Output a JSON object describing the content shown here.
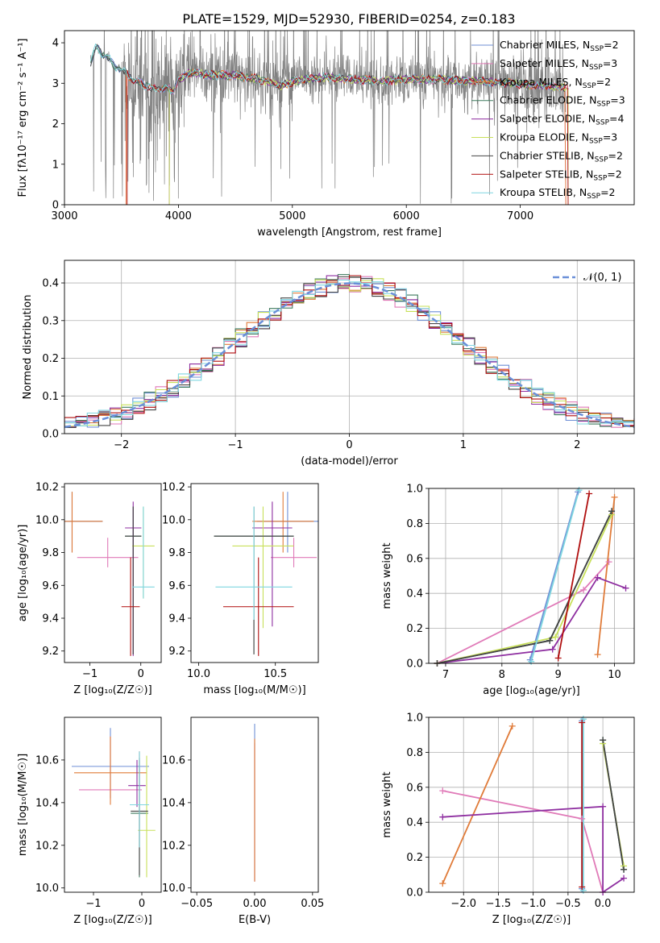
{
  "figure_title": "PLATE=1529, MJD=52930, FIBERID=0254, z=0.183",
  "models": [
    {
      "label": "Chabrier MILES, N",
      "sub": "SSP",
      "suffix": "=2",
      "color": "#6f8fd6"
    },
    {
      "label": "Salpeter MILES, N",
      "sub": "SSP",
      "suffix": "=3",
      "color": "#e07ab8"
    },
    {
      "label": "Kroupa MILES, N",
      "sub": "SSP",
      "suffix": "=2",
      "color": "#e07b39"
    },
    {
      "label": "Chabrier ELODIE, N",
      "sub": "SSP",
      "suffix": "=3",
      "color": "#3f7a5e"
    },
    {
      "label": "Salpeter ELODIE, N",
      "sub": "SSP",
      "suffix": "=4",
      "color": "#8e2ea0"
    },
    {
      "label": "Kroupa ELODIE, N",
      "sub": "SSP",
      "suffix": "=3",
      "color": "#c8e05a"
    },
    {
      "label": "Chabrier STELIB, N",
      "sub": "SSP",
      "suffix": "=2",
      "color": "#444444"
    },
    {
      "label": "Salpeter STELIB, N",
      "sub": "SSP",
      "suffix": "=2",
      "color": "#b00f0f"
    },
    {
      "label": "Kroupa STELIB, N",
      "sub": "SSP",
      "suffix": "=2",
      "color": "#7fd6e0"
    }
  ],
  "chart_data": [
    {
      "id": "spectrum",
      "type": "line",
      "xlabel": "wavelength [Angstrom, rest frame]",
      "ylabel": "Flux [fλ10⁻¹⁷ erg cm⁻² s⁻¹ A⁻¹]",
      "xlim": [
        3000,
        8000
      ],
      "ylim": [
        0,
        4.3
      ],
      "xticks": [
        3000,
        4000,
        5000,
        6000,
        7000
      ],
      "yticks": [
        0,
        1,
        2,
        3,
        4
      ],
      "legend": "top-right",
      "data_color": "#808080",
      "continuum_x": [
        3230,
        3280,
        3330,
        3380,
        3450,
        3520,
        3600,
        3700,
        3800,
        3900,
        3950,
        4000,
        4100,
        4300,
        4500,
        4700,
        4900,
        5100,
        5300,
        5500,
        5800,
        6000,
        6300,
        6600,
        6900,
        7200,
        7400
      ],
      "continuum_y": [
        3.5,
        3.95,
        3.7,
        3.65,
        3.4,
        3.3,
        3.1,
        2.95,
        2.85,
        2.9,
        2.75,
        3.1,
        3.25,
        3.2,
        3.2,
        3.1,
        2.95,
        3.1,
        3.15,
        3.1,
        3.05,
        3.1,
        3.1,
        3.05,
        3.0,
        2.95,
        2.9
      ]
    },
    {
      "id": "residuals",
      "type": "line",
      "xlabel": "(data-model)/error",
      "ylabel": "Normed distribution",
      "xlim": [
        -2.5,
        2.5
      ],
      "ylim": [
        0,
        0.46
      ],
      "xticks": [
        -2,
        -1,
        0,
        1,
        2
      ],
      "yticks": [
        0.0,
        0.1,
        0.2,
        0.3,
        0.4
      ],
      "grid": true,
      "legend": "top-right",
      "reference_label": "𝒩(0, 1)",
      "reference_color": "#6a8fd8"
    },
    {
      "id": "age-vs-Z",
      "type": "scatter",
      "xlabel": "Z [log₁₀(Z/Z☉)]",
      "ylabel": "age  [log₁₀(age/yr)]",
      "xlim": [
        -1.5,
        0.4
      ],
      "ylim": [
        9.13,
        10.22
      ],
      "xticks": [
        -1,
        0
      ],
      "yticks": [
        9.2,
        9.4,
        9.6,
        9.8,
        10.0,
        10.2
      ],
      "points": [
        {
          "x": -1.35,
          "y": 9.99,
          "xerr": 0.6,
          "yerr": [
            0.19,
            0.18
          ]
        },
        {
          "x": -0.65,
          "y": 9.77,
          "xerr": 0.6,
          "yerr": [
            0.06,
            0.12
          ]
        },
        {
          "x": -1.35,
          "y": 9.99,
          "xerr": 0.6,
          "yerr": [
            0.19,
            0.18
          ]
        },
        {
          "x": -0.15,
          "y": 9.9,
          "xerr": 0.16,
          "yerr": [
            0.72,
            0.18
          ]
        },
        {
          "x": -0.15,
          "y": 9.95,
          "xerr": 0.16,
          "yerr": [
            0.78,
            0.16
          ]
        },
        {
          "x": 0.05,
          "y": 9.84,
          "xerr": 0.22,
          "yerr": [
            0.32,
            0.24
          ]
        },
        {
          "x": -0.15,
          "y": 9.9,
          "xerr": 0.16,
          "yerr": [
            0.72,
            0.18
          ]
        },
        {
          "x": -0.2,
          "y": 9.47,
          "xerr": 0.18,
          "yerr": [
            0.3,
            0.3
          ]
        },
        {
          "x": 0.05,
          "y": 9.59,
          "xerr": 0.22,
          "yerr": [
            0.07,
            0.49
          ]
        }
      ]
    },
    {
      "id": "age-vs-mass",
      "type": "scatter",
      "xlabel": "mass [log₁₀(M/M☉)]",
      "ylabel": "",
      "xlim": [
        9.95,
        10.78
      ],
      "ylim": [
        9.13,
        10.22
      ],
      "xticks": [
        10.0,
        10.5
      ],
      "yticks": [
        9.2,
        9.4,
        9.6,
        9.8,
        10.0,
        10.2
      ],
      "points": [
        {
          "x": 10.58,
          "y": 9.99,
          "xerr": 0.2,
          "yerr": [
            0.19,
            0.18
          ]
        },
        {
          "x": 10.62,
          "y": 9.77,
          "xerr": 0.15,
          "yerr": [
            0.06,
            0.12
          ]
        },
        {
          "x": 10.55,
          "y": 9.99,
          "xerr": 0.2,
          "yerr": [
            0.19,
            0.18
          ]
        },
        {
          "x": 10.36,
          "y": 9.9,
          "xerr": 0.26,
          "yerr": [
            0.72,
            0.18
          ]
        },
        {
          "x": 10.48,
          "y": 9.95,
          "xerr": 0.13,
          "yerr": [
            0.6,
            0.16
          ]
        },
        {
          "x": 10.42,
          "y": 9.84,
          "xerr": 0.2,
          "yerr": [
            0.5,
            0.24
          ]
        },
        {
          "x": 10.36,
          "y": 9.9,
          "xerr": 0.26,
          "yerr": [
            0.72,
            0.18
          ]
        },
        {
          "x": 10.39,
          "y": 9.47,
          "xerr": 0.23,
          "yerr": [
            0.3,
            0.3
          ]
        },
        {
          "x": 10.36,
          "y": 9.59,
          "xerr": 0.25,
          "yerr": [
            0.2,
            0.49
          ]
        }
      ]
    },
    {
      "id": "massweight-vs-age",
      "type": "line",
      "xlabel": "age  [log₁₀(age/yr)]",
      "ylabel": "mass weight",
      "xlim": [
        6.7,
        10.35
      ],
      "ylim": [
        0,
        1
      ],
      "xticks": [
        7,
        8,
        9,
        10
      ],
      "yticks": [
        0.0,
        0.2,
        0.4,
        0.6,
        0.8,
        1.0
      ],
      "grid": true,
      "series": [
        {
          "model": 0,
          "x": [
            8.5,
            9.35
          ],
          "y": [
            0.02,
            0.98
          ]
        },
        {
          "model": 1,
          "x": [
            6.85,
            9.45,
            9.9
          ],
          "y": [
            0.0,
            0.42,
            0.58
          ]
        },
        {
          "model": 2,
          "x": [
            9.7,
            10.0
          ],
          "y": [
            0.05,
            0.95
          ]
        },
        {
          "model": 3,
          "x": [
            6.85,
            8.85,
            9.95
          ],
          "y": [
            0.0,
            0.13,
            0.87
          ]
        },
        {
          "model": 4,
          "x": [
            6.85,
            8.9,
            9.7,
            10.2
          ],
          "y": [
            0.0,
            0.08,
            0.49,
            0.43
          ]
        },
        {
          "model": 5,
          "x": [
            6.85,
            8.95,
            9.95
          ],
          "y": [
            0.0,
            0.15,
            0.85
          ]
        },
        {
          "model": 6,
          "x": [
            6.85,
            8.85,
            9.95
          ],
          "y": [
            0.0,
            0.13,
            0.87
          ]
        },
        {
          "model": 7,
          "x": [
            9.0,
            9.55
          ],
          "y": [
            0.03,
            0.97
          ]
        },
        {
          "model": 8,
          "x": [
            8.52,
            9.37
          ],
          "y": [
            0.01,
            0.99
          ]
        }
      ]
    },
    {
      "id": "mass-vs-Z",
      "type": "scatter",
      "xlabel": "Z [log₁₀(Z/Z☉)]",
      "ylabel": "mass [log₁₀(M/M☉)]",
      "xlim": [
        -1.6,
        0.4
      ],
      "ylim": [
        9.98,
        10.8
      ],
      "xticks": [
        -1,
        0
      ],
      "yticks": [
        10.0,
        10.2,
        10.4,
        10.6
      ],
      "points": [
        {
          "x": -0.65,
          "y": 10.57,
          "xerr": 0.8,
          "yerr": [
            0.15,
            0.18
          ]
        },
        {
          "x": -0.65,
          "y": 10.46,
          "xerr": 0.65,
          "yerr": [
            0.04,
            0.25
          ]
        },
        {
          "x": -0.65,
          "y": 10.54,
          "xerr": 0.75,
          "yerr": [
            0.15,
            0.17
          ]
        },
        {
          "x": -0.05,
          "y": 10.35,
          "xerr": 0.18,
          "yerr": [
            0.3,
            0.25
          ]
        },
        {
          "x": -0.1,
          "y": 10.48,
          "xerr": 0.18,
          "yerr": [
            0.1,
            0.12
          ]
        },
        {
          "x": 0.1,
          "y": 10.27,
          "xerr": 0.18,
          "yerr": [
            0.22,
            0.35
          ]
        },
        {
          "x": -0.05,
          "y": 10.36,
          "xerr": 0.18,
          "yerr": [
            0.3,
            0.25
          ]
        },
        {
          "x": -0.05,
          "y": 10.39,
          "xerr": 0.2,
          "yerr": [
            0.2,
            0.25
          ]
        },
        {
          "x": -0.05,
          "y": 10.39,
          "xerr": 0.2,
          "yerr": [
            0.2,
            0.25
          ]
        }
      ]
    },
    {
      "id": "mass-vs-EBV",
      "type": "scatter",
      "xlabel": "E(B-V)",
      "ylabel": "",
      "xlim": [
        -0.055,
        0.055
      ],
      "ylim": [
        9.98,
        10.8
      ],
      "xticks": [
        -0.05,
        0.0,
        0.05
      ],
      "yticks": [
        10.0,
        10.2,
        10.4,
        10.6
      ],
      "points": [
        {
          "x": 0.0,
          "y": 10.4,
          "xerr": 0,
          "yerr": [
            0.37,
            0.37
          ]
        },
        {
          "x": 0.0,
          "y": 10.38,
          "xerr": 0,
          "yerr": [
            0.35,
            0.3
          ]
        },
        {
          "x": 0.0,
          "y": 10.4,
          "xerr": 0,
          "yerr": [
            0.37,
            0.3
          ]
        }
      ]
    },
    {
      "id": "massweight-vs-Z",
      "type": "line",
      "xlabel": "Z [log₁₀(Z/Z☉)]",
      "ylabel": "mass weight",
      "xlim": [
        -2.5,
        0.45
      ],
      "ylim": [
        0,
        1
      ],
      "xticks": [
        -2.0,
        -1.5,
        -1.0,
        -0.5,
        0.0
      ],
      "yticks": [
        0.0,
        0.2,
        0.4,
        0.6,
        0.8,
        1.0
      ],
      "grid": true,
      "series": [
        {
          "model": 0,
          "x": [
            -0.3,
            -0.3
          ],
          "y": [
            0.02,
            0.98
          ]
        },
        {
          "model": 1,
          "x": [
            -2.3,
            -0.3,
            0.0
          ],
          "y": [
            0.58,
            0.42,
            0.0
          ]
        },
        {
          "model": 2,
          "x": [
            -2.3,
            -1.3
          ],
          "y": [
            0.05,
            0.95
          ]
        },
        {
          "model": 3,
          "x": [
            0.0,
            0.3
          ],
          "y": [
            0.87,
            0.13
          ]
        },
        {
          "model": 4,
          "x": [
            -2.3,
            0.0,
            0.0,
            0.3
          ],
          "y": [
            0.43,
            0.49,
            0.0,
            0.08
          ]
        },
        {
          "model": 5,
          "x": [
            0.0,
            0.3
          ],
          "y": [
            0.85,
            0.15
          ]
        },
        {
          "model": 6,
          "x": [
            0.0,
            0.3
          ],
          "y": [
            0.87,
            0.13
          ]
        },
        {
          "model": 7,
          "x": [
            -0.3,
            -0.3
          ],
          "y": [
            0.03,
            0.97
          ]
        },
        {
          "model": 8,
          "x": [
            -0.28,
            -0.28
          ],
          "y": [
            0.01,
            0.99
          ]
        }
      ]
    }
  ]
}
